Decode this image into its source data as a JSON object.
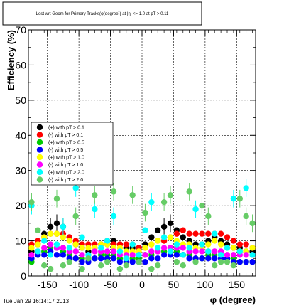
{
  "chart_data": {
    "type": "scatter",
    "title": "Lost wrt Geom for Primary Tracks(φ(degree)) at |η| <= 1.0 at pT > 0.11",
    "xlabel": "φ (degree)",
    "ylabel": "Efficiency (%)",
    "xlim": [
      -180,
      180
    ],
    "ylim": [
      0,
      70
    ],
    "x_ticks": [
      -150,
      -100,
      -50,
      0,
      50,
      100,
      150
    ],
    "y_ticks": [
      0,
      10,
      20,
      30,
      40,
      50,
      60,
      70
    ],
    "grid": true,
    "legend_position": "left",
    "series": [
      {
        "name": "(+) with pT > 0.1",
        "color": "#000000",
        "x": [
          -175,
          -165,
          -155,
          -145,
          -135,
          -125,
          -115,
          -105,
          -95,
          -85,
          -75,
          -65,
          -55,
          -45,
          -35,
          -25,
          -15,
          -5,
          5,
          15,
          25,
          35,
          45,
          55,
          65,
          75,
          85,
          95,
          105,
          115,
          125,
          135,
          145,
          155,
          165,
          175
        ],
        "y": [
          7,
          9,
          12,
          14,
          15,
          14,
          11,
          9,
          8,
          7,
          8,
          9,
          10,
          10,
          9,
          8,
          8,
          8,
          9,
          11,
          13,
          14,
          15,
          13,
          11,
          10,
          9,
          9,
          10,
          11,
          10,
          9,
          8,
          8,
          7,
          7
        ]
      },
      {
        "name": "(-) with pT > 0.1",
        "color": "#ff0000",
        "x": [
          -175,
          -165,
          -155,
          -145,
          -135,
          -125,
          -115,
          -105,
          -95,
          -85,
          -75,
          -65,
          -55,
          -45,
          -35,
          -25,
          -15,
          -5,
          5,
          15,
          25,
          35,
          45,
          55,
          65,
          75,
          85,
          95,
          105,
          115,
          125,
          135,
          145,
          155,
          165,
          175
        ],
        "y": [
          9,
          10,
          11,
          12,
          12,
          12,
          11,
          10,
          9,
          9,
          9,
          9,
          9,
          9,
          9,
          9,
          9,
          8,
          8,
          9,
          10,
          10,
          11,
          12,
          13,
          12,
          12,
          12,
          12,
          12,
          12,
          11,
          10,
          9,
          9,
          8
        ]
      },
      {
        "name": "(+) with pT > 0.5",
        "color": "#00cc00",
        "x": [
          -175,
          -165,
          -155,
          -145,
          -135,
          -125,
          -115,
          -105,
          -95,
          -85,
          -75,
          -65,
          -55,
          -45,
          -35,
          -25,
          -15,
          -5,
          5,
          15,
          25,
          35,
          45,
          55,
          65,
          75,
          85,
          95,
          105,
          115,
          125,
          135,
          145,
          155,
          165,
          175
        ],
        "y": [
          4,
          6,
          7,
          8,
          8,
          7,
          6,
          5,
          5,
          5,
          5,
          6,
          6,
          6,
          5,
          5,
          5,
          5,
          6,
          6,
          7,
          7,
          8,
          7,
          6,
          6,
          5,
          5,
          6,
          6,
          6,
          5,
          5,
          4,
          4,
          4
        ]
      },
      {
        "name": "(-) with pT > 0.5",
        "color": "#0000ff",
        "x": [
          -175,
          -165,
          -155,
          -145,
          -135,
          -125,
          -115,
          -105,
          -95,
          -85,
          -75,
          -65,
          -55,
          -45,
          -35,
          -25,
          -15,
          -5,
          5,
          15,
          25,
          35,
          45,
          55,
          65,
          75,
          85,
          95,
          105,
          115,
          125,
          135,
          145,
          155,
          165,
          175
        ],
        "y": [
          5,
          6,
          6,
          7,
          6,
          6,
          5,
          5,
          4,
          4,
          5,
          5,
          5,
          5,
          4,
          4,
          4,
          4,
          4,
          5,
          5,
          6,
          6,
          6,
          6,
          5,
          5,
          5,
          5,
          5,
          5,
          5,
          4,
          4,
          4,
          4
        ]
      },
      {
        "name": "(+) with pT > 1.0",
        "color": "#ffff00",
        "x": [
          -175,
          -165,
          -155,
          -145,
          -135,
          -125,
          -115,
          -105,
          -95,
          -85,
          -75,
          -65,
          -55,
          -45,
          -35,
          -25,
          -15,
          -5,
          5,
          15,
          25,
          35,
          45,
          55,
          65,
          75,
          85,
          95,
          105,
          115,
          125,
          135,
          145,
          155,
          165,
          175
        ],
        "y": [
          8,
          9,
          11,
          12,
          12,
          11,
          10,
          9,
          8,
          8,
          8,
          9,
          9,
          8,
          8,
          7,
          7,
          7,
          8,
          9,
          10,
          11,
          11,
          10,
          9,
          9,
          8,
          8,
          9,
          10,
          9,
          8,
          8,
          7,
          7,
          8
        ]
      },
      {
        "name": "(-) with pT > 1.0",
        "color": "#ff00ff",
        "x": [
          -175,
          -165,
          -155,
          -145,
          -135,
          -125,
          -115,
          -105,
          -95,
          -85,
          -75,
          -65,
          -55,
          -45,
          -35,
          -25,
          -15,
          -5,
          5,
          15,
          25,
          35,
          45,
          55,
          65,
          75,
          85,
          95,
          105,
          115,
          125,
          135,
          145,
          155,
          165,
          175
        ],
        "y": [
          6,
          7,
          8,
          9,
          8,
          8,
          7,
          7,
          6,
          6,
          7,
          7,
          7,
          7,
          6,
          6,
          6,
          6,
          6,
          7,
          7,
          8,
          8,
          8,
          8,
          7,
          7,
          7,
          7,
          7,
          7,
          6,
          6,
          6,
          6,
          6
        ]
      },
      {
        "name": "(+) with pT > 2.0",
        "color": "#00ffff",
        "x": [
          -175,
          -165,
          -155,
          -145,
          -135,
          -125,
          -115,
          -105,
          -95,
          -85,
          -75,
          -65,
          -55,
          -45,
          -35,
          -25,
          -15,
          -5,
          5,
          15,
          25,
          35,
          45,
          55,
          65,
          75,
          85,
          95,
          105,
          115,
          125,
          135,
          145,
          155,
          165,
          175
        ],
        "y": [
          20,
          7,
          10,
          6,
          9,
          14,
          8,
          25,
          11,
          6,
          19,
          8,
          10,
          17,
          7,
          5,
          9,
          6,
          13,
          21,
          8,
          11,
          7,
          9,
          6,
          8,
          19,
          9,
          7,
          12,
          6,
          8,
          22,
          7,
          25,
          6
        ]
      },
      {
        "name": "(-) with pT > 2.0",
        "color": "#66cc66",
        "x": [
          -175,
          -165,
          -155,
          -145,
          -135,
          -125,
          -115,
          -105,
          -95,
          -85,
          -75,
          -65,
          -55,
          -45,
          -35,
          -25,
          -15,
          -5,
          5,
          15,
          25,
          35,
          45,
          55,
          65,
          75,
          85,
          95,
          105,
          115,
          125,
          135,
          145,
          155,
          165,
          175
        ],
        "y": [
          21,
          13,
          3,
          2,
          22,
          3,
          4,
          17,
          2,
          5,
          23,
          3,
          4,
          24,
          2,
          3,
          23,
          4,
          18,
          2,
          3,
          21,
          23,
          4,
          3,
          24,
          4,
          20,
          17,
          3,
          4,
          4,
          3,
          22,
          17,
          15
        ]
      }
    ]
  },
  "footer": {
    "timestamp": "Tue Jan 29 16:14:17 2013"
  }
}
